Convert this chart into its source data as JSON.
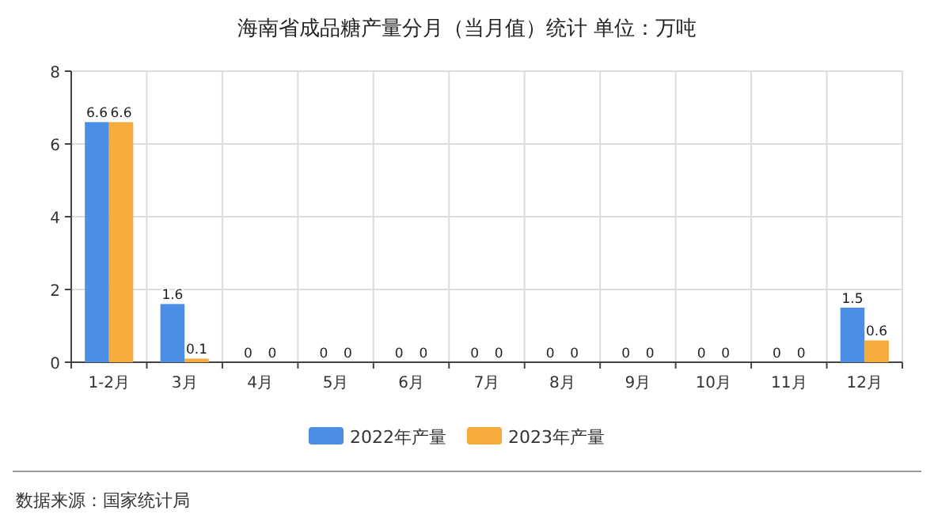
{
  "chart_data": {
    "type": "bar",
    "title": "海南省成品糖产量分月（当月值）统计  单位：万吨",
    "categories": [
      "1-2月",
      "3月",
      "4月",
      "5月",
      "6月",
      "7月",
      "8月",
      "9月",
      "10月",
      "11月",
      "12月"
    ],
    "series": [
      {
        "name": "2022年产量",
        "color": "#4a8ee6",
        "values": [
          6.6,
          1.6,
          0,
          0,
          0,
          0,
          0,
          0,
          0,
          0,
          1.5
        ]
      },
      {
        "name": "2023年产量",
        "color": "#f5ac3c",
        "values": [
          6.6,
          0.1,
          0,
          0,
          0,
          0,
          0,
          0,
          0,
          0,
          0.6
        ]
      }
    ],
    "ylim": [
      0,
      8
    ],
    "yticks": [
      0,
      2,
      4,
      6,
      8
    ],
    "grid": true,
    "legend": "bottom",
    "data_labels": true,
    "annotations": [
      "数据来源：国家统计局"
    ]
  }
}
